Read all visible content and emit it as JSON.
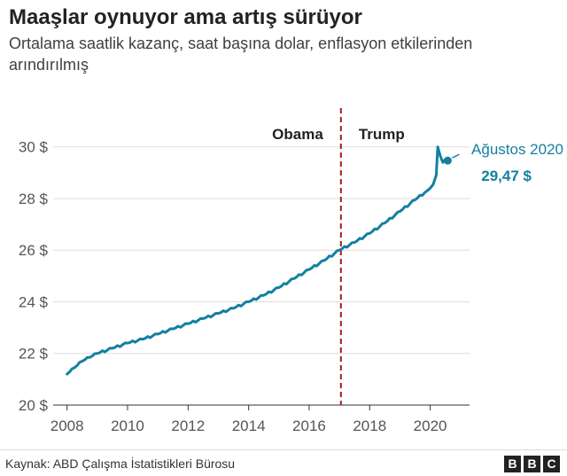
{
  "header": {
    "title": "Maaşlar oynuyor ama artış sürüyor",
    "subtitle": "Ortalama saatlik kazanç, saat başına dolar, enflasyon etkilerinden arındırılmış"
  },
  "footer": {
    "source": "Kaynak: ABD Çalışma İstatistikleri Bürosu",
    "logo_letters": [
      "B",
      "B",
      "C"
    ]
  },
  "chart_data": {
    "type": "line",
    "title": "Maaşlar oynuyor ama artış sürüyor",
    "subtitle": "Ortalama saatlik kazanç, saat başına dolar, enflasyon etkilerinden arındırılmış",
    "xlabel": "",
    "ylabel": "",
    "xlim": [
      2007.6,
      2021.3
    ],
    "ylim": [
      20,
      31.5
    ],
    "x_ticks": [
      2008,
      2010,
      2012,
      2014,
      2016,
      2018,
      2020
    ],
    "y_ticks": [
      20,
      22,
      24,
      26,
      28,
      30
    ],
    "y_tick_labels": [
      "20 $",
      "22 $",
      "24 $",
      "26 $",
      "28 $",
      "30 $"
    ],
    "grid": "horizontal",
    "line_color": "#1380a1",
    "series": [
      {
        "x": [
          2008.0,
          2008.25,
          2008.5,
          2008.75,
          2009.0,
          2009.5,
          2010.0,
          2010.5,
          2011.0,
          2011.5,
          2012.0,
          2012.5,
          2013.0,
          2013.5,
          2014.0,
          2014.5,
          2015.0,
          2015.5,
          2016.0,
          2016.5,
          2017.0,
          2017.5,
          2018.0,
          2018.5,
          2019.0,
          2019.5,
          2019.9,
          2020.0,
          2020.1,
          2020.2,
          2020.25,
          2020.33,
          2020.42,
          2020.5,
          2020.58
        ],
        "y": [
          21.2,
          21.45,
          21.7,
          21.85,
          22.0,
          22.2,
          22.4,
          22.55,
          22.75,
          22.95,
          23.15,
          23.35,
          23.55,
          23.75,
          24.0,
          24.25,
          24.55,
          24.9,
          25.25,
          25.6,
          26.0,
          26.3,
          26.65,
          27.05,
          27.5,
          27.95,
          28.3,
          28.4,
          28.55,
          28.9,
          30.0,
          29.65,
          29.4,
          29.52,
          29.47
        ]
      }
    ],
    "divider": {
      "x": 2017.05,
      "color": "#a51c1c",
      "style": "dashed"
    },
    "period_labels": [
      {
        "text": "Obama",
        "side": "left"
      },
      {
        "text": "Trump",
        "side": "right"
      }
    ],
    "annotation": {
      "label": "Ağustos 2020",
      "value_label": "29,47 $",
      "x": 2020.58,
      "y": 29.47
    }
  }
}
